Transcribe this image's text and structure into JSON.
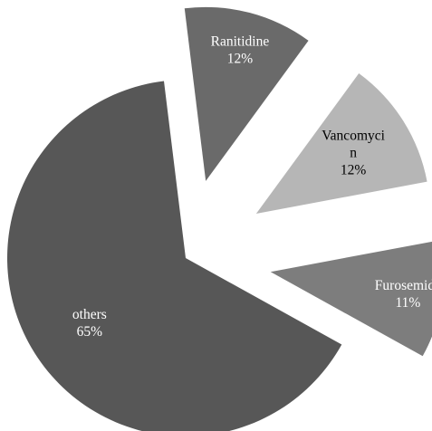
{
  "chart_data": {
    "type": "pie",
    "title": "",
    "legend": "none",
    "exploded": true,
    "slices": [
      {
        "label": "Ranitidine",
        "value": 12,
        "value_label": "12%",
        "color": "#6a6a6a",
        "text_color": "#ffffff"
      },
      {
        "label": "Vancomycin",
        "label_display_lines": [
          "Vancomyci",
          "n"
        ],
        "value": 12,
        "value_label": "12%",
        "color": "#b6b6b6",
        "text_color": "#000000"
      },
      {
        "label": "Furosemide",
        "value": 11,
        "value_label": "11%",
        "color": "#7d7d7d",
        "text_color": "#ffffff"
      },
      {
        "label": "others",
        "value": 65,
        "value_label": "65%",
        "color": "#575757",
        "text_color": "#ffffff"
      }
    ]
  }
}
